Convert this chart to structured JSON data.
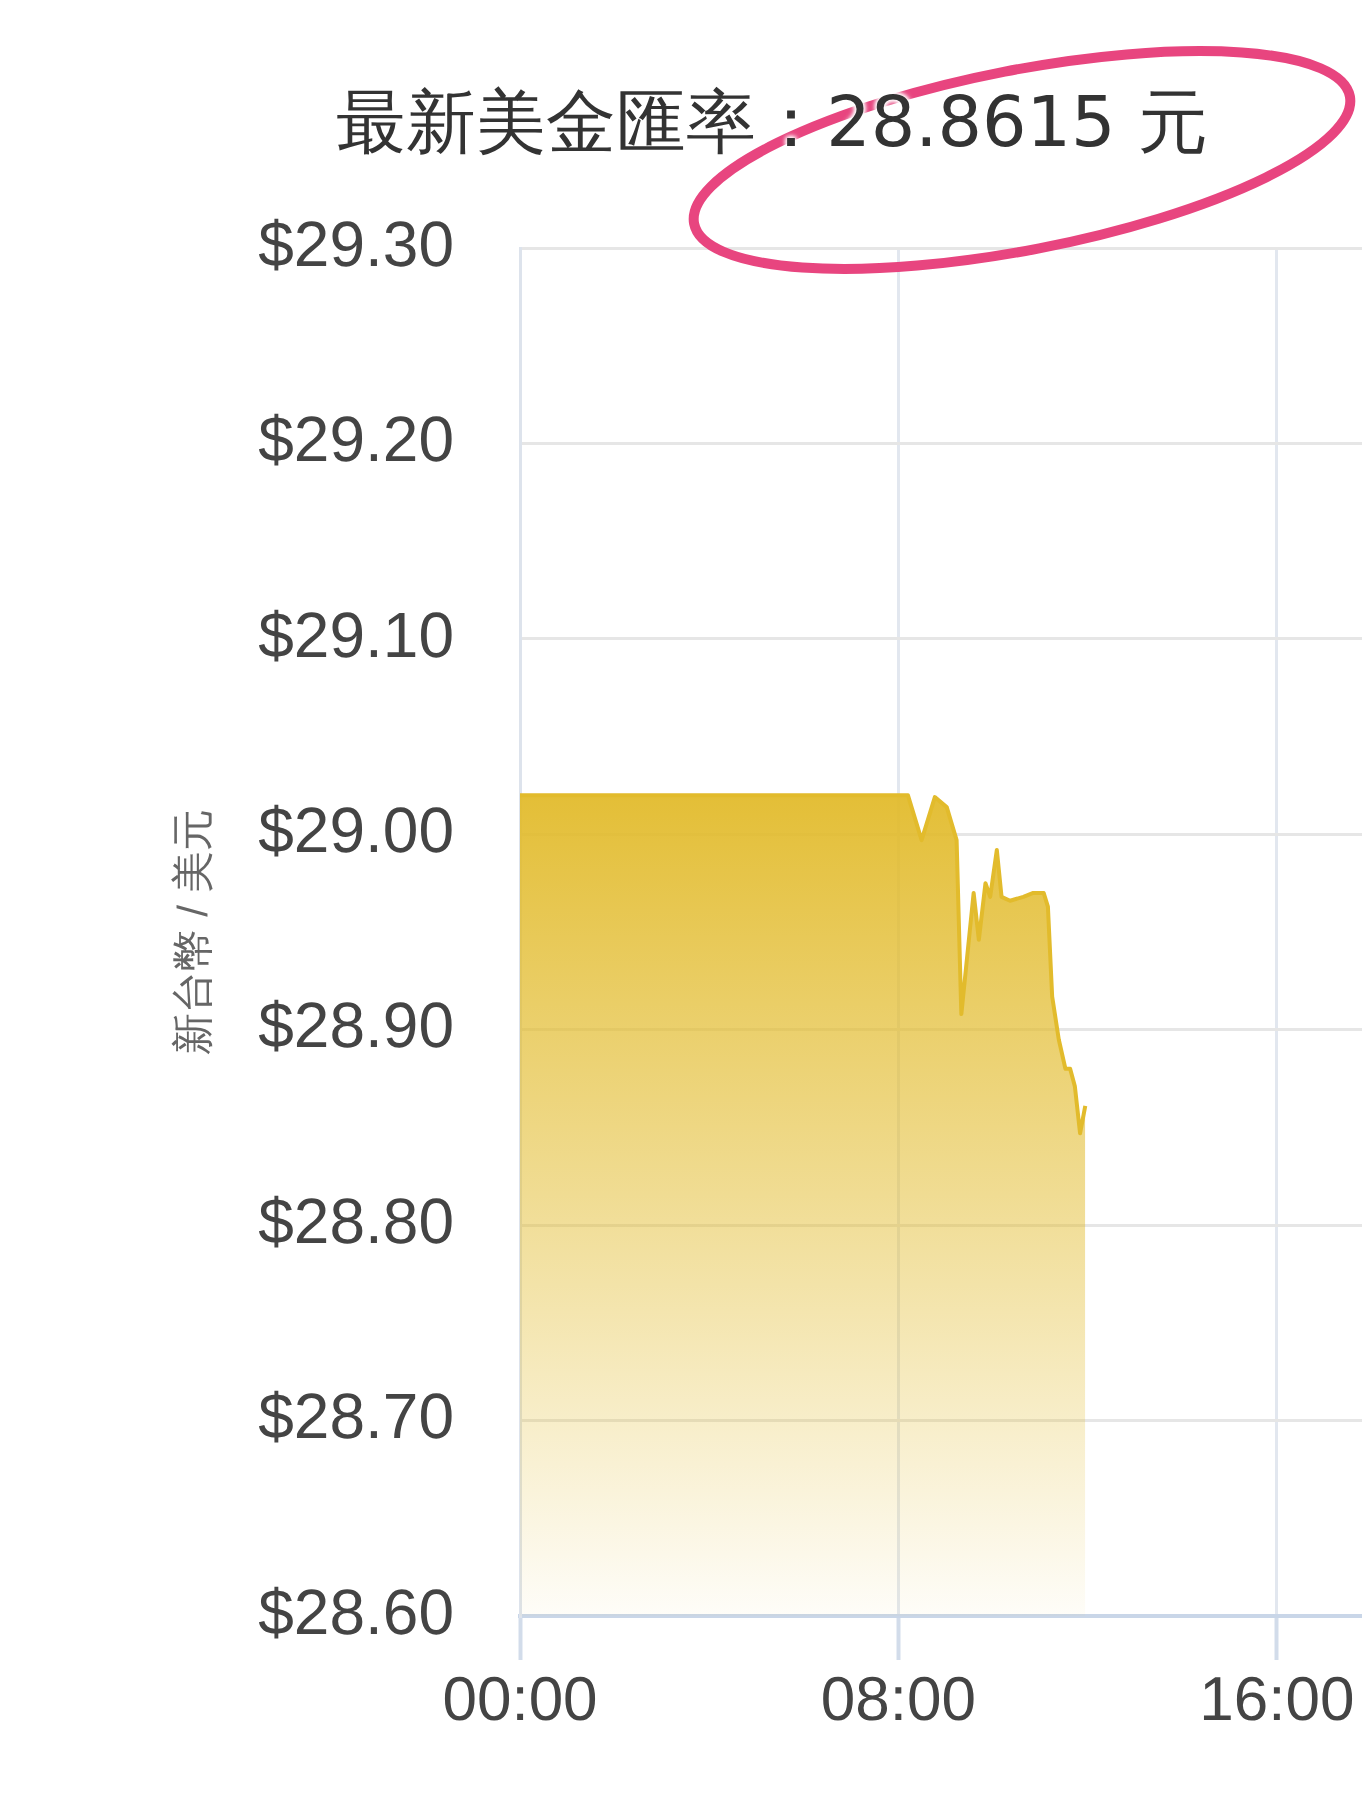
{
  "chart_data": {
    "type": "area",
    "title": "最新美金匯率：28.8615 元",
    "ylabel": "新台幣 / 美元",
    "x": [
      0,
      2,
      4,
      6,
      8.2,
      8.49,
      8.77,
      9.02,
      9.23,
      9.33,
      9.59,
      9.7,
      9.84,
      9.94,
      10.08,
      10.18,
      10.36,
      10.64,
      10.85,
      11.07,
      11.16,
      11.25,
      11.39,
      11.53,
      11.63,
      11.73,
      11.84,
      11.95
    ],
    "series": [
      {
        "color": "#e2bb2c",
        "values": [
          29.02,
          29.02,
          29.02,
          29.02,
          29.02,
          28.997,
          29.019,
          29.014,
          28.997,
          28.908,
          28.97,
          28.946,
          28.975,
          28.968,
          28.992,
          28.968,
          28.966,
          28.968,
          28.97,
          28.97,
          28.963,
          28.917,
          28.895,
          28.88,
          28.88,
          28.871,
          28.847,
          28.861
        ]
      }
    ],
    "xlim": [
      0,
      17.8
    ],
    "xticks": [
      {
        "value": 0,
        "label": "00:00"
      },
      {
        "value": 8,
        "label": "08:00"
      },
      {
        "value": 16,
        "label": "16:00"
      }
    ],
    "ylim": [
      28.6,
      29.3
    ],
    "yticks": [
      {
        "value": 28.6,
        "label": "$28.60"
      },
      {
        "value": 28.7,
        "label": "$28.70"
      },
      {
        "value": 28.8,
        "label": "$28.80"
      },
      {
        "value": 28.9,
        "label": "$28.90"
      },
      {
        "value": 29.0,
        "label": "$29.00"
      },
      {
        "value": 29.1,
        "label": "$29.10"
      },
      {
        "value": 29.2,
        "label": "$29.20"
      },
      {
        "value": 29.3,
        "label": "$29.30"
      }
    ],
    "grid": true
  }
}
